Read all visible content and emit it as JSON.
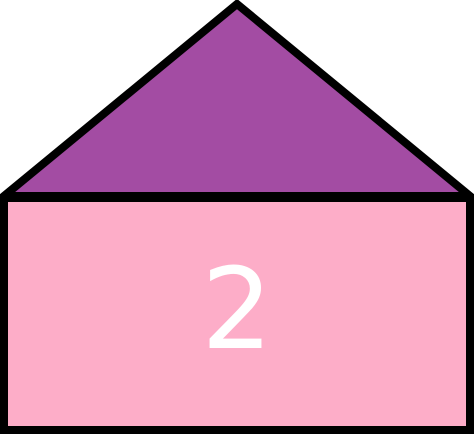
{
  "house": {
    "number": "2",
    "roof_color": "#a34ca3",
    "wall_color": "#fdadc8",
    "outline_color": "#000000",
    "number_color": "#ffffff"
  }
}
